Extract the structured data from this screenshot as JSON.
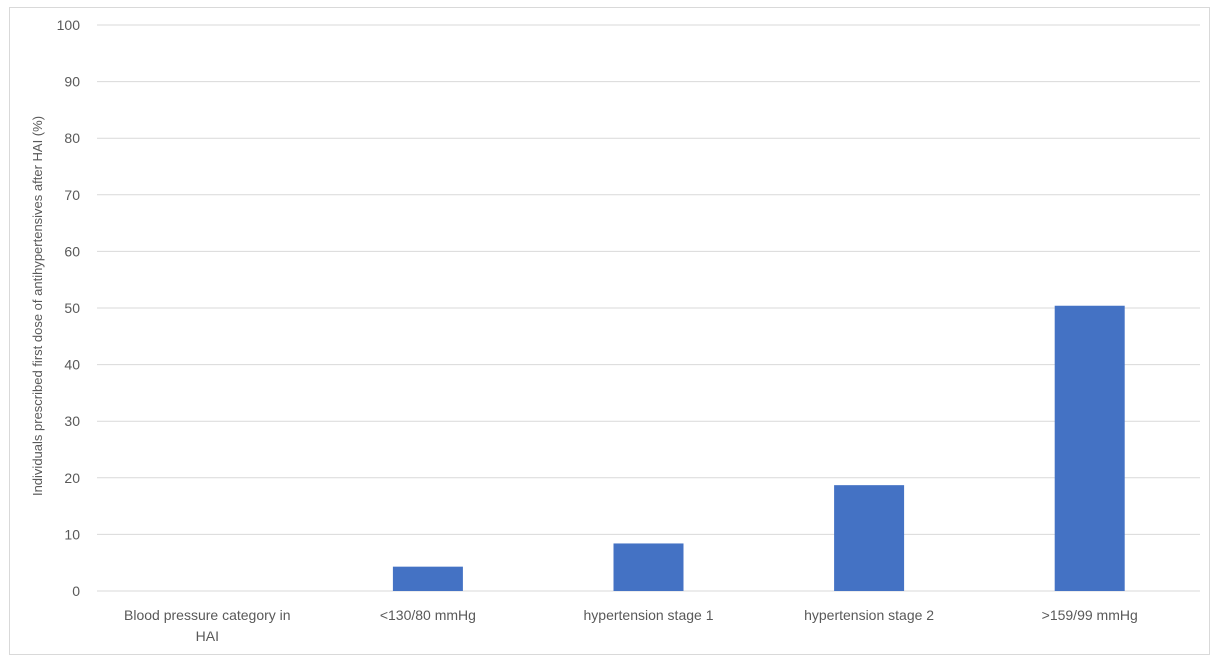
{
  "chart_data": {
    "type": "bar",
    "title": "",
    "xlabel": "",
    "ylabel": "Individuals prescribed first dose of antihypertensives after HAI (%)",
    "categories": [
      "Blood pressure category in HAI",
      "<130/80 mmHg",
      "hypertension stage 1",
      "hypertension stage 2",
      ">159/99 mmHg"
    ],
    "values": [
      0,
      4.3,
      8.4,
      18.7,
      50.4
    ],
    "ylim": [
      0,
      100
    ],
    "yticks": [
      0,
      10,
      20,
      30,
      40,
      50,
      60,
      70,
      80,
      90,
      100
    ],
    "grid": true,
    "legend": "none",
    "bar_color": "#4472c4",
    "gridline_color": "#d9d9d9",
    "text_color": "#595959"
  }
}
